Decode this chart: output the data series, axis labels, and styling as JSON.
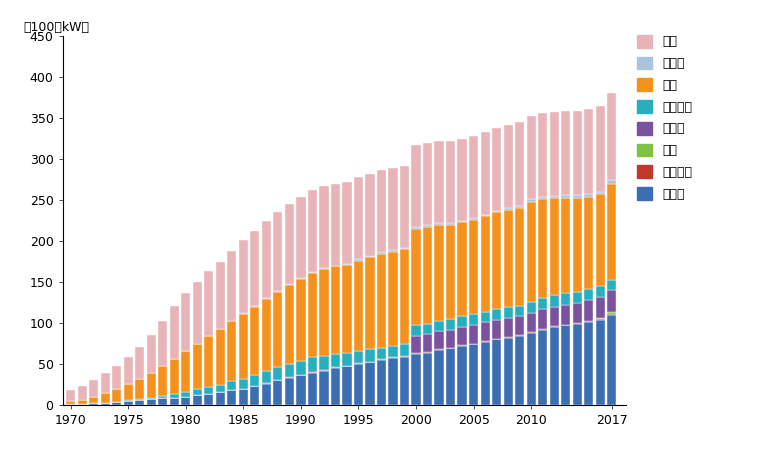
{
  "years": [
    1970,
    1971,
    1972,
    1973,
    1974,
    1975,
    1976,
    1977,
    1978,
    1979,
    1980,
    1981,
    1982,
    1983,
    1984,
    1985,
    1986,
    1987,
    1988,
    1989,
    1990,
    1991,
    1992,
    1993,
    1994,
    1995,
    1996,
    1997,
    1998,
    1999,
    2000,
    2001,
    2002,
    2003,
    2004,
    2005,
    2006,
    2007,
    2008,
    2009,
    2010,
    2011,
    2012,
    2013,
    2014,
    2015,
    2016,
    2017
  ],
  "series": {
    "アジア": [
      1,
      1,
      2,
      3,
      4,
      5,
      6,
      7,
      8,
      9,
      10,
      12,
      14,
      16,
      18,
      20,
      23,
      26,
      30,
      33,
      36,
      39,
      42,
      45,
      47,
      50,
      52,
      55,
      57,
      59,
      62,
      64,
      67,
      69,
      72,
      74,
      77,
      80,
      82,
      84,
      88,
      92,
      95,
      97,
      99,
      101,
      104,
      110
    ],
    "アフリカ": [
      0,
      0,
      0,
      0,
      0,
      0,
      0,
      0,
      0,
      0,
      0,
      0,
      0,
      0,
      0,
      0,
      0,
      1,
      1,
      1,
      1,
      1,
      1,
      1,
      1,
      1,
      1,
      1,
      1,
      1,
      1,
      1,
      1,
      1,
      1,
      1,
      1,
      1,
      1,
      1,
      1,
      1,
      1,
      1,
      1,
      1,
      1,
      1
    ],
    "中東": [
      0,
      0,
      0,
      0,
      0,
      0,
      0,
      0,
      0,
      0,
      0,
      0,
      0,
      0,
      0,
      0,
      0,
      0,
      0,
      0,
      0,
      0,
      0,
      0,
      0,
      0,
      0,
      0,
      0,
      0,
      0,
      0,
      0,
      0,
      0,
      0,
      0,
      0,
      0,
      0,
      0,
      0,
      0,
      0,
      0,
      0,
      1,
      2
    ],
    "ロシア": [
      0,
      0,
      0,
      0,
      0,
      0,
      0,
      0,
      0,
      0,
      0,
      0,
      0,
      0,
      0,
      0,
      0,
      0,
      0,
      0,
      0,
      0,
      0,
      0,
      0,
      0,
      0,
      0,
      0,
      0,
      21,
      21,
      22,
      22,
      22,
      23,
      23,
      23,
      23,
      23,
      23,
      24,
      24,
      24,
      25,
      26,
      26,
      27
    ],
    "他旧ソ連": [
      0,
      0,
      0,
      0,
      0,
      1,
      1,
      2,
      3,
      4,
      6,
      7,
      8,
      9,
      11,
      12,
      13,
      14,
      15,
      16,
      17,
      18,
      17,
      16,
      15,
      15,
      15,
      14,
      14,
      14,
      13,
      13,
      13,
      13,
      13,
      13,
      13,
      13,
      13,
      13,
      14,
      14,
      14,
      14,
      13,
      13,
      13,
      13
    ],
    "欧州": [
      4,
      5,
      8,
      12,
      16,
      20,
      25,
      30,
      36,
      43,
      50,
      56,
      62,
      68,
      73,
      79,
      84,
      88,
      92,
      96,
      100,
      103,
      106,
      107,
      108,
      110,
      112,
      114,
      115,
      116,
      118,
      118,
      117,
      115,
      115,
      115,
      116,
      118,
      119,
      119,
      122,
      120,
      118,
      117,
      115,
      113,
      112,
      117
    ],
    "中南米": [
      0,
      0,
      0,
      0,
      0,
      0,
      0,
      0,
      0,
      0,
      0,
      0,
      0,
      0,
      0,
      1,
      1,
      1,
      1,
      1,
      1,
      1,
      1,
      1,
      1,
      2,
      2,
      2,
      2,
      2,
      2,
      2,
      2,
      2,
      2,
      2,
      2,
      2,
      2,
      3,
      3,
      3,
      3,
      3,
      3,
      3,
      3,
      4
    ],
    "北米": [
      13,
      17,
      20,
      24,
      28,
      33,
      39,
      46,
      55,
      65,
      70,
      75,
      79,
      82,
      86,
      89,
      91,
      94,
      96,
      98,
      99,
      100,
      100,
      100,
      100,
      100,
      100,
      100,
      100,
      100,
      100,
      100,
      100,
      100,
      100,
      100,
      101,
      101,
      101,
      102,
      102,
      102,
      102,
      102,
      103,
      104,
      105,
      106
    ]
  },
  "colors": {
    "アジア": "#3c6eb4",
    "アフリカ": "#c0392b",
    "中東": "#7dc242",
    "ロシア": "#7b52a0",
    "他旧ソ連": "#27afc0",
    "欧州": "#f5921e",
    "中南米": "#aac4e0",
    "北米": "#e8b4b8"
  },
  "ylabel": "（100万kW）",
  "ylim": [
    0,
    450
  ],
  "yticks": [
    0,
    50,
    100,
    150,
    200,
    250,
    300,
    350,
    400,
    450
  ],
  "xticks": [
    1970,
    1975,
    1980,
    1985,
    1990,
    1995,
    2000,
    2005,
    2010,
    2017
  ],
  "legend_order": [
    "北米",
    "中南米",
    "欧州",
    "他旧ソ連",
    "ロシア",
    "中東",
    "アフリカ",
    "アジア"
  ],
  "bar_width": 0.8
}
